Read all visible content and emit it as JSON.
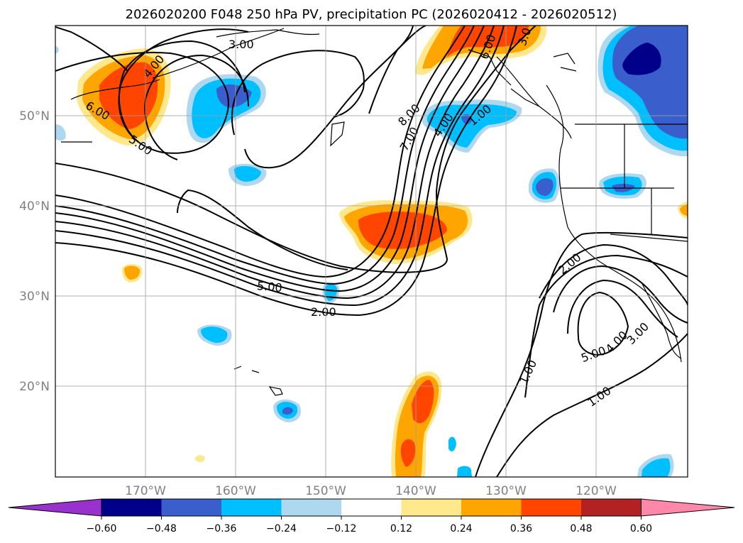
{
  "title": "2026020200 F048 250 hPa PV, precipitation PC (2026020412 - 2026020512)",
  "latitude_labels": [
    "50°N",
    "40°N",
    "30°N",
    "20°N"
  ],
  "longitude_labels": [
    "170°W",
    "160°W",
    "150°W",
    "140°W",
    "130°W",
    "120°W"
  ],
  "colorbar": {
    "tick_labels": [
      "−0.60",
      "−0.48",
      "−0.36",
      "−0.24",
      "−0.12",
      "0.12",
      "0.24",
      "0.36",
      "0.48",
      "0.60"
    ],
    "bins": [
      {
        "color": "#9932cc"
      },
      {
        "color": "#00008b"
      },
      {
        "color": "#3a5fcd"
      },
      {
        "color": "#00bfff"
      },
      {
        "color": "#add8f0"
      },
      {
        "color": "#ffffff"
      },
      {
        "color": "#ffe88c"
      },
      {
        "color": "#ffa500"
      },
      {
        "color": "#ff4500"
      },
      {
        "color": "#b22222"
      },
      {
        "color": "#ff88aa"
      }
    ]
  },
  "contour_labels": {
    "nw_3": "3.00",
    "nw_4": "4.00",
    "nw_6": "6.00",
    "nw_5": "5.00",
    "mid_5": "5.00",
    "mid_2": "2.00",
    "ne_8": "8.00",
    "ne_7": "7.00",
    "ne_4": "4.00",
    "ne_1": "1.00",
    "ne_6": "6.00",
    "ne_3": "3.0",
    "se_2": "2.00",
    "se_1a": "1.00",
    "se_1b": "1.00",
    "se_5": "5.00",
    "se_4": "4.00",
    "se_3": "3.00"
  }
}
